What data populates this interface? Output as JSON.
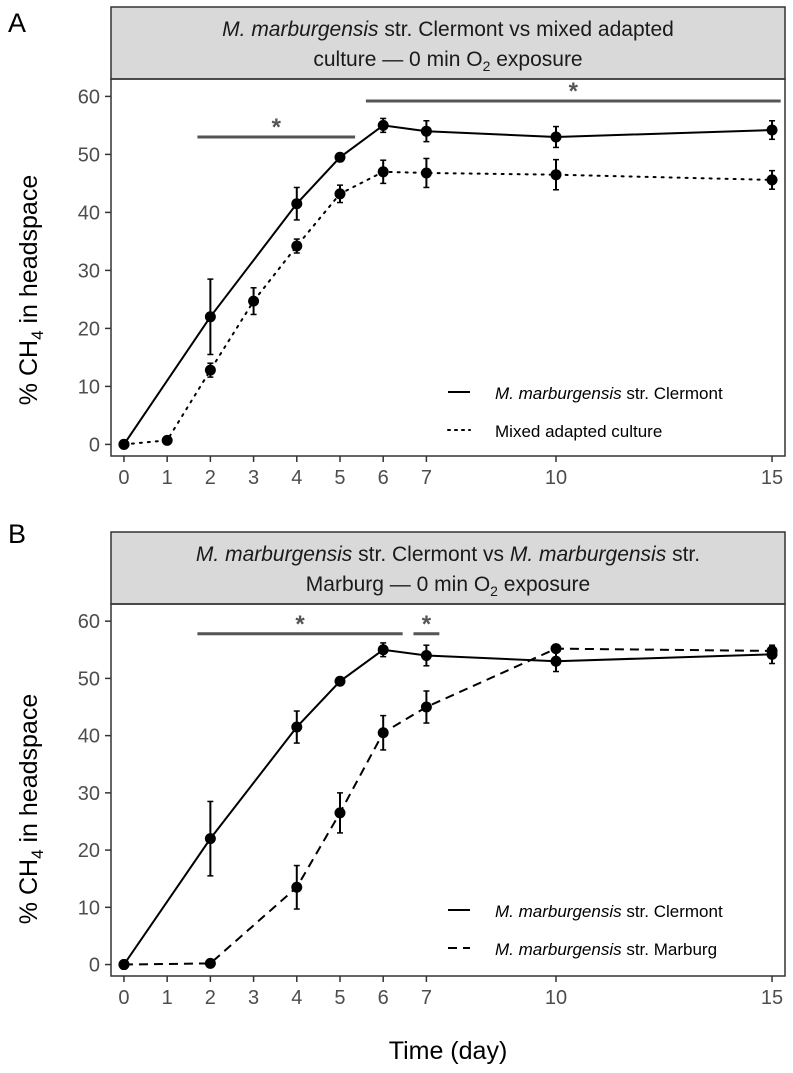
{
  "figure": {
    "xlabel": "Time (day)",
    "ylabel": "% CH4 in headspace",
    "ylabel_main": "% CH",
    "ylabel_sub": "4",
    "ylabel_tail": " in headspace"
  },
  "panel_a": {
    "letter": "A",
    "title_line1_italic": "M. marburgensis",
    "title_line1_rest": " str. Clermont vs mixed adapted",
    "title_line2_pre": "culture — 0 min O",
    "title_line2_sub": "2",
    "title_line2_post": " exposure",
    "legend": [
      {
        "italic": "M. marburgensis",
        "rest": " str. Clermont",
        "style": "solid"
      },
      {
        "italic": "",
        "rest": "Mixed adapted culture",
        "style": "dotted"
      }
    ]
  },
  "panel_b": {
    "letter": "B",
    "title_line1_italic_a": "M. marburgensis",
    "title_line1_mid": " str. Clermont vs ",
    "title_line1_italic_b": "M. marburgensis",
    "title_line1_rest": " str.",
    "title_line2_pre": "Marburg — 0 min O",
    "title_line2_sub": "2",
    "title_line2_post": " exposure",
    "legend": [
      {
        "italic": "M. marburgensis",
        "rest": " str. Clermont",
        "style": "solid"
      },
      {
        "italic": "M. marburgensis",
        "rest": " str. Marburg",
        "style": "dashed"
      }
    ]
  },
  "chart_data": [
    {
      "type": "line",
      "panel": "A",
      "title": "M. marburgensis str. Clermont vs mixed adapted culture — 0 min O2 exposure",
      "xlabel": "Time (day)",
      "ylabel": "% CH4 in headspace",
      "xticks": [
        0,
        1,
        2,
        3,
        4,
        5,
        6,
        7,
        10,
        15
      ],
      "yticks": [
        0,
        10,
        20,
        30,
        40,
        50,
        60
      ],
      "xlim": [
        -0.3,
        15.3
      ],
      "ylim": [
        -2,
        63
      ],
      "grid": false,
      "legend_position": "bottom-right",
      "series": [
        {
          "name": "M. marburgensis str. Clermont",
          "style": "solid",
          "x": [
            0,
            2,
            4,
            5,
            6,
            7,
            10,
            15
          ],
          "y": [
            0,
            22,
            41.5,
            49.5,
            55,
            54,
            53,
            54.2
          ],
          "err": [
            0,
            6.5,
            2.8,
            0.6,
            1.2,
            1.8,
            1.8,
            1.6
          ]
        },
        {
          "name": "Mixed adapted culture",
          "style": "dotted",
          "x": [
            0,
            1,
            2,
            3,
            4,
            5,
            6,
            7,
            10,
            15
          ],
          "y": [
            0,
            0.7,
            12.8,
            24.7,
            34.2,
            43.2,
            47,
            46.8,
            46.5,
            45.6
          ],
          "err": [
            0,
            0.5,
            1.2,
            2.3,
            1.2,
            1.5,
            2,
            2.5,
            2.6,
            1.6
          ]
        }
      ],
      "significance": [
        {
          "x_start": 1.7,
          "x_end": 5.35,
          "y": 53,
          "label": "*"
        },
        {
          "x_start": 5.6,
          "x_end": 15.2,
          "y": 59.2,
          "label": "*"
        }
      ]
    },
    {
      "type": "line",
      "panel": "B",
      "title": "M. marburgensis str. Clermont vs M. marburgensis str. Marburg — 0 min O2 exposure",
      "xlabel": "Time (day)",
      "ylabel": "% CH4 in headspace",
      "xticks": [
        0,
        1,
        2,
        3,
        4,
        5,
        6,
        7,
        10,
        15
      ],
      "yticks": [
        0,
        10,
        20,
        30,
        40,
        50,
        60
      ],
      "xlim": [
        -0.3,
        15.3
      ],
      "ylim": [
        -2,
        63
      ],
      "grid": false,
      "legend_position": "bottom-right",
      "series": [
        {
          "name": "M. marburgensis str. Clermont",
          "style": "solid",
          "x": [
            0,
            2,
            4,
            5,
            6,
            7,
            10,
            15
          ],
          "y": [
            0,
            22,
            41.5,
            49.5,
            55,
            54,
            53,
            54.2
          ],
          "err": [
            0,
            6.5,
            2.8,
            0.6,
            1.2,
            1.8,
            1.8,
            1.6
          ]
        },
        {
          "name": "M. marburgensis str. Marburg",
          "style": "dashed",
          "x": [
            0,
            2,
            4,
            5,
            6,
            7,
            10,
            15
          ],
          "y": [
            0,
            0.2,
            13.5,
            26.5,
            40.5,
            45,
            55.2,
            54.8
          ],
          "err": [
            0,
            0.2,
            3.8,
            3.5,
            3,
            2.8,
            0.6,
            0.6
          ]
        }
      ],
      "significance": [
        {
          "x_start": 1.7,
          "x_end": 6.45,
          "y": 57.8,
          "label": "*"
        },
        {
          "x_start": 6.7,
          "x_end": 7.3,
          "y": 57.8,
          "label": "*"
        }
      ]
    }
  ]
}
